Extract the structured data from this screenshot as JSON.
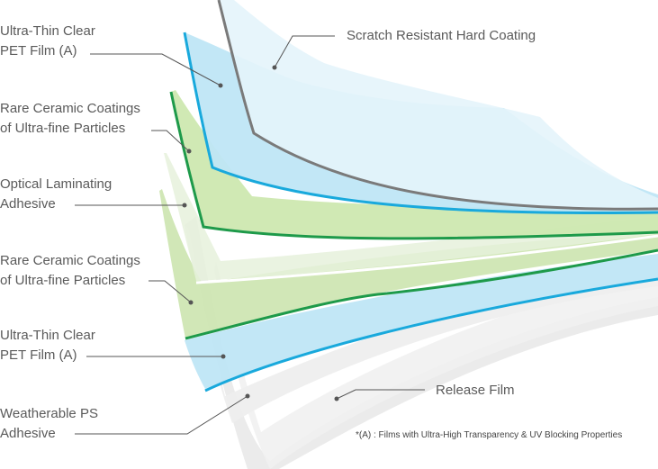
{
  "labels": {
    "pet_film_top": {
      "line1": "Ultra-Thin Clear",
      "line2": "PET Film (A)"
    },
    "ceramic_top": {
      "line1": "Rare Ceramic Coatings",
      "line2": "of Ultra-fine Particles"
    },
    "laminating": {
      "line1": "Optical Laminating",
      "line2": "Adhesive"
    },
    "ceramic_bottom": {
      "line1": "Rare Ceramic Coatings",
      "line2": "of Ultra-fine Particles"
    },
    "pet_film_bottom": {
      "line1": "Ultra-Thin Clear",
      "line2": "PET Film (A)"
    },
    "ps_adhesive": {
      "line1": "Weatherable PS",
      "line2": "Adhesive"
    },
    "hard_coating": "Scratch Resistant Hard Coating",
    "release_film": "Release Film"
  },
  "footnote": "*(A) : Films with Ultra-High Transparency & UV Blocking Properties",
  "colors": {
    "hard_coating_edge": "#7a7a7a",
    "pet_film_edge": "#19a9dc",
    "pet_film_fill": "#bfe6f6",
    "ceramic_edge": "#1e9a4a",
    "ceramic_fill": "#cfe6b3",
    "laminating_edge": "#ffffff",
    "release_film": "#e3e3e3",
    "leader_line": "#555555",
    "label_text": "#5a5a5a"
  }
}
